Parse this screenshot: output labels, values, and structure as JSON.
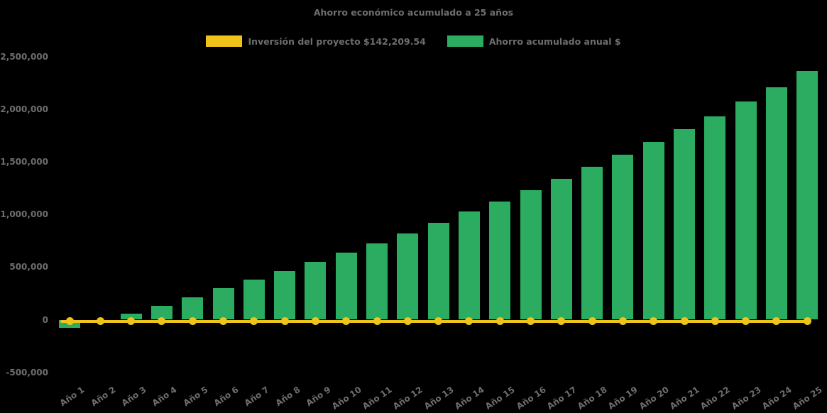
{
  "chart_data": {
    "type": "bar",
    "title": "Ahorro económico acumulado a 25 años",
    "background_color": "#000000",
    "text_color": "#6e6e6e",
    "grid": false,
    "legend_position": "top",
    "categories": [
      "Año 1",
      "Año 2",
      "Año 3",
      "Año 4",
      "Año 5",
      "Año 6",
      "Año 7",
      "Año 8",
      "Año 9",
      "Año 10",
      "Año 11",
      "Año 12",
      "Año 13",
      "Año 14",
      "Año 15",
      "Año 16",
      "Año 17",
      "Año 18",
      "Año 19",
      "Año 20",
      "Año 21",
      "Año 22",
      "Año 23",
      "Año 24",
      "Año 25"
    ],
    "series": [
      {
        "name": "Inversión del proyecto $142,209.54",
        "type": "line",
        "color": "#EFC31A",
        "investment_amount_shown_in_label": 142209.54,
        "plotted_value": -15000,
        "marker": "circle-dot"
      },
      {
        "name": "Ahorro acumulado anual $",
        "type": "bar",
        "color": "#2BAC60",
        "values": [
          -80000,
          0,
          60000,
          130000,
          210000,
          300000,
          380000,
          460000,
          550000,
          640000,
          725000,
          820000,
          920000,
          1030000,
          1120000,
          1230000,
          1340000,
          1450000,
          1570000,
          1690000,
          1810000,
          1930000,
          2070000,
          2210000,
          2360000
        ]
      }
    ],
    "y_ticks": [
      2500000,
      2000000,
      1500000,
      1000000,
      500000,
      0,
      -500000
    ],
    "y_tick_labels": [
      "2,500,000",
      "2,000,000",
      "1,500,000",
      "1,000,000",
      "500,000",
      "0",
      "-500,000"
    ],
    "ylim": [
      -650000,
      2600000
    ],
    "xlabel": "",
    "ylabel": ""
  }
}
